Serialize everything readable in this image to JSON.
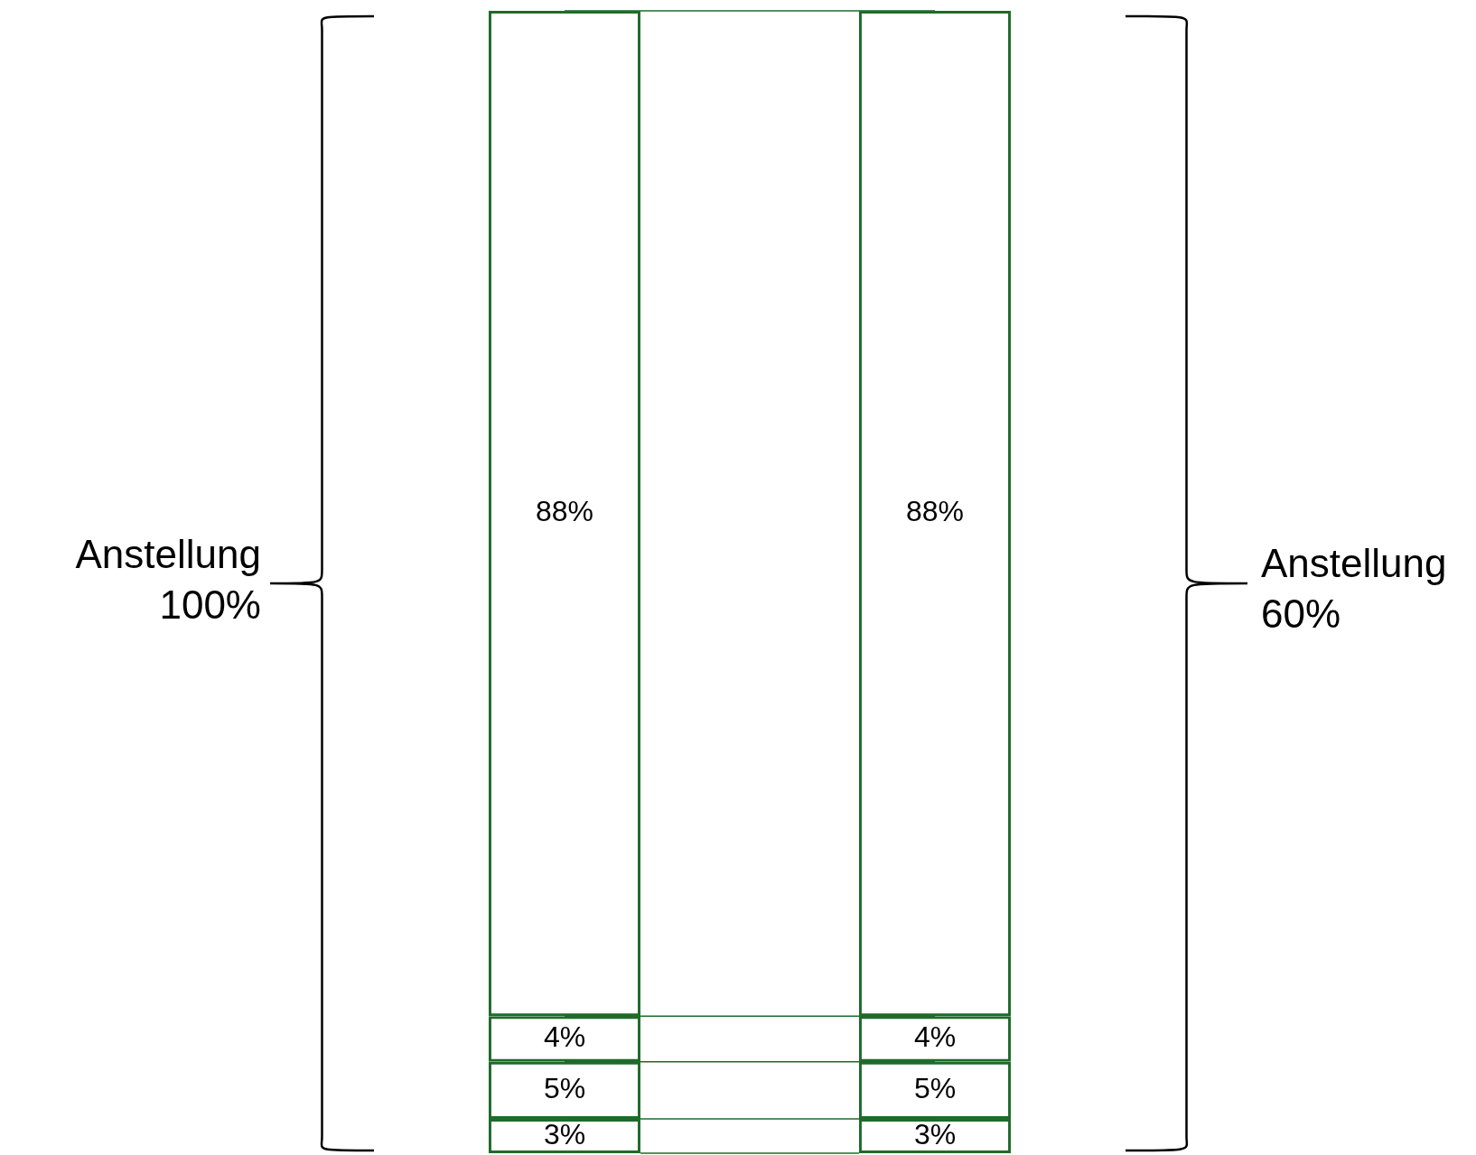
{
  "chart_data": {
    "type": "bar",
    "stacked": true,
    "categories": [
      null,
      null
    ],
    "tick_labels": false,
    "legend": false,
    "series": [
      {
        "color": "#1e6b2a",
        "values": [
          3,
          3
        ],
        "value_labels": [
          "3%",
          "3%"
        ]
      },
      {
        "color": "#1e6b2a",
        "values": [
          5,
          5
        ],
        "value_labels": [
          "5%",
          "5%"
        ]
      },
      {
        "color": "#1e6b2a",
        "values": [
          4,
          4
        ],
        "value_labels": [
          "4%",
          "4%"
        ]
      },
      {
        "color": "#1e6b2a",
        "values": [
          88,
          88
        ],
        "value_labels": [
          "88%",
          "88%"
        ]
      }
    ],
    "annotations": [
      "Anstellung 100%",
      "Anstellung 60%"
    ]
  }
}
